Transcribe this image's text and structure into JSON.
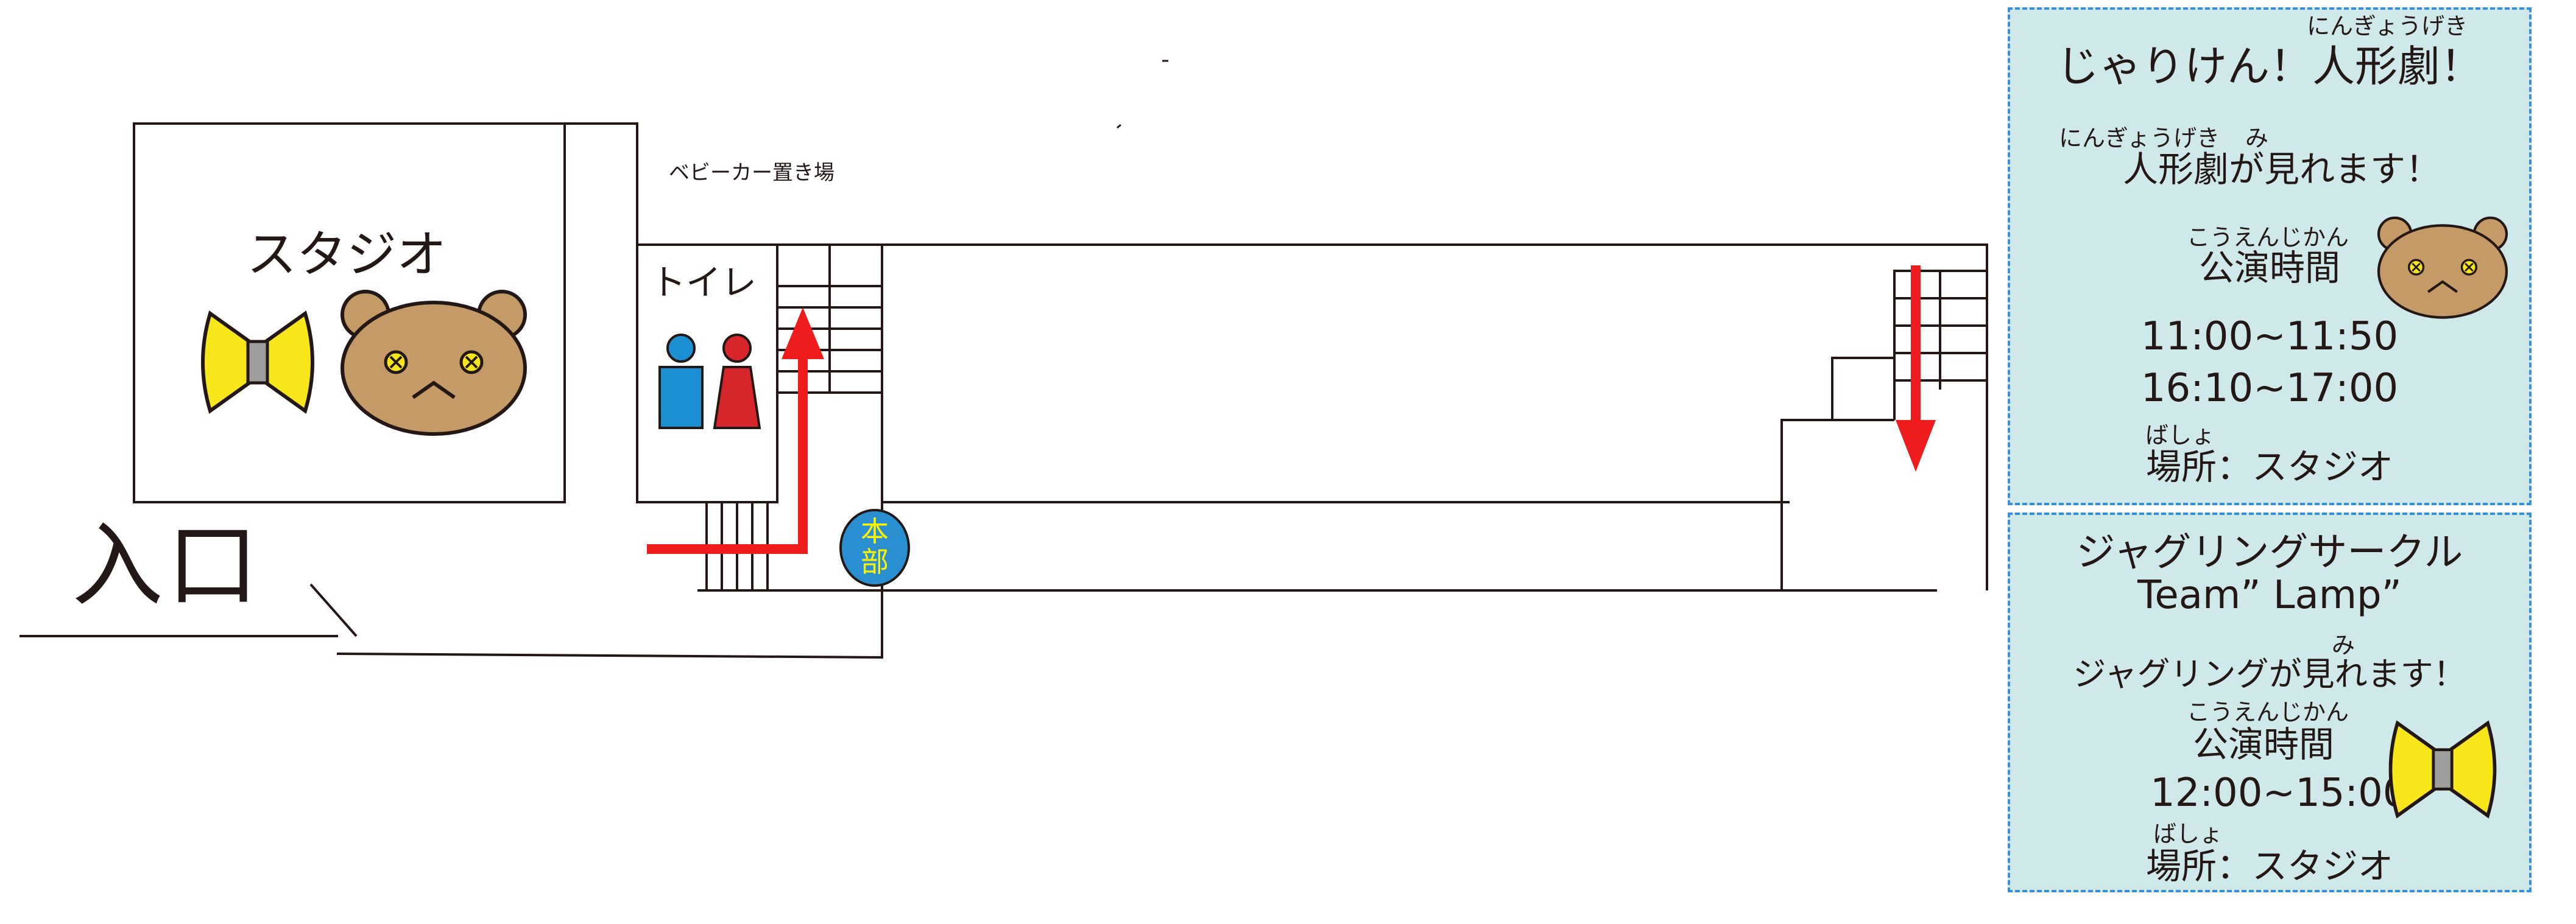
{
  "map": {
    "studio_label": "スタジオ",
    "toilet_label": "トイレ",
    "stroller_label": "ベビーカー置き場",
    "entrance_label": "入口",
    "hq_label": "本部",
    "colors": {
      "arrow": "#ee1c1c",
      "hq_fill": "#2a8fd0",
      "hq_text": "#fff200",
      "male": "#1b8fd1",
      "female": "#d7262b",
      "bowtie": "#f6e61a",
      "bear": "#c49a66"
    }
  },
  "panel1": {
    "title": "じゃりけん！人形劇！",
    "title_ruby": "にんぎょうげき",
    "subtitle": "人形劇が見れます！",
    "subtitle_ruby_1": "にんぎょうげき",
    "subtitle_ruby_2": "み",
    "time_heading": "公演時間",
    "time_ruby": "こうえんじかん",
    "time_1": "11:00~11:50",
    "time_2": "16:10~17:00",
    "place": "場所：スタジオ",
    "place_ruby": "ばしょ"
  },
  "panel2": {
    "title": "ジャグリングサークル",
    "title_line2": "Team” Lamp”",
    "subtitle": "ジャグリングが見れます！",
    "subtitle_ruby": "み",
    "time_heading": "公演時間",
    "time_ruby": "こうえんじかん",
    "time_1": "12:00~15:00",
    "place": "場所：スタジオ",
    "place_ruby": "ばしょ"
  }
}
